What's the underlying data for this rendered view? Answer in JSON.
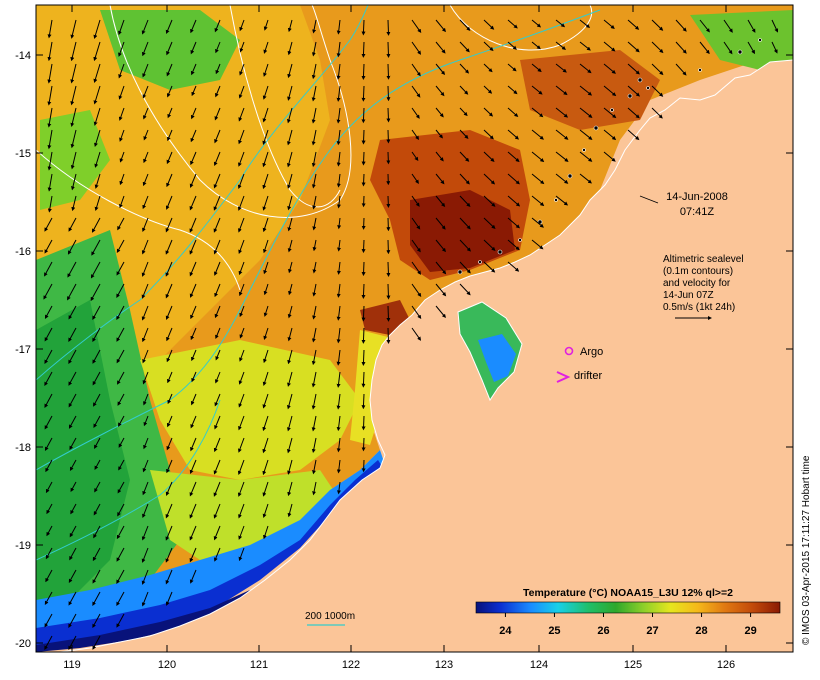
{
  "map": {
    "longitude_ticks": [
      "119",
      "120",
      "121",
      "122",
      "123",
      "124",
      "125",
      "126"
    ],
    "latitude_ticks": [
      "-14",
      "-15",
      "-16",
      "-17",
      "-18",
      "-19",
      "-20"
    ]
  },
  "annotations": {
    "date_line1": "14-Jun-2008",
    "date_line2": "07:41Z",
    "alt_line1": "Altimetric sealevel",
    "alt_line2": "(0.1m contours)",
    "alt_line3": "and velocity for",
    "alt_line4": "14-Jun 07Z",
    "alt_line5": "0.5m/s (1kt 24h)"
  },
  "legend": {
    "argo_label": "Argo",
    "drifter_label": "drifter",
    "depth_label": "200  1000m"
  },
  "colorbar": {
    "title": "Temperature (°C) NOAA15_L3U 12% ql>=2",
    "ticks": [
      "24",
      "25",
      "26",
      "27",
      "28",
      "29"
    ],
    "colors": [
      "#08127a",
      "#0a2fd1",
      "#1a8cff",
      "#18d0e8",
      "#1fbf6a",
      "#2fa82c",
      "#8ccf2a",
      "#e6e61e",
      "#f5b81a",
      "#e07812",
      "#c24a0a",
      "#8a1a04"
    ]
  },
  "credit": "© IMOS 03-Apr-2015 17:11:27 Hobart time",
  "colors": {
    "land": "#fbc598",
    "arrow": "#000000",
    "isobath": "#33cccc",
    "contour": "#ffffff",
    "argo": "#e020e0"
  }
}
